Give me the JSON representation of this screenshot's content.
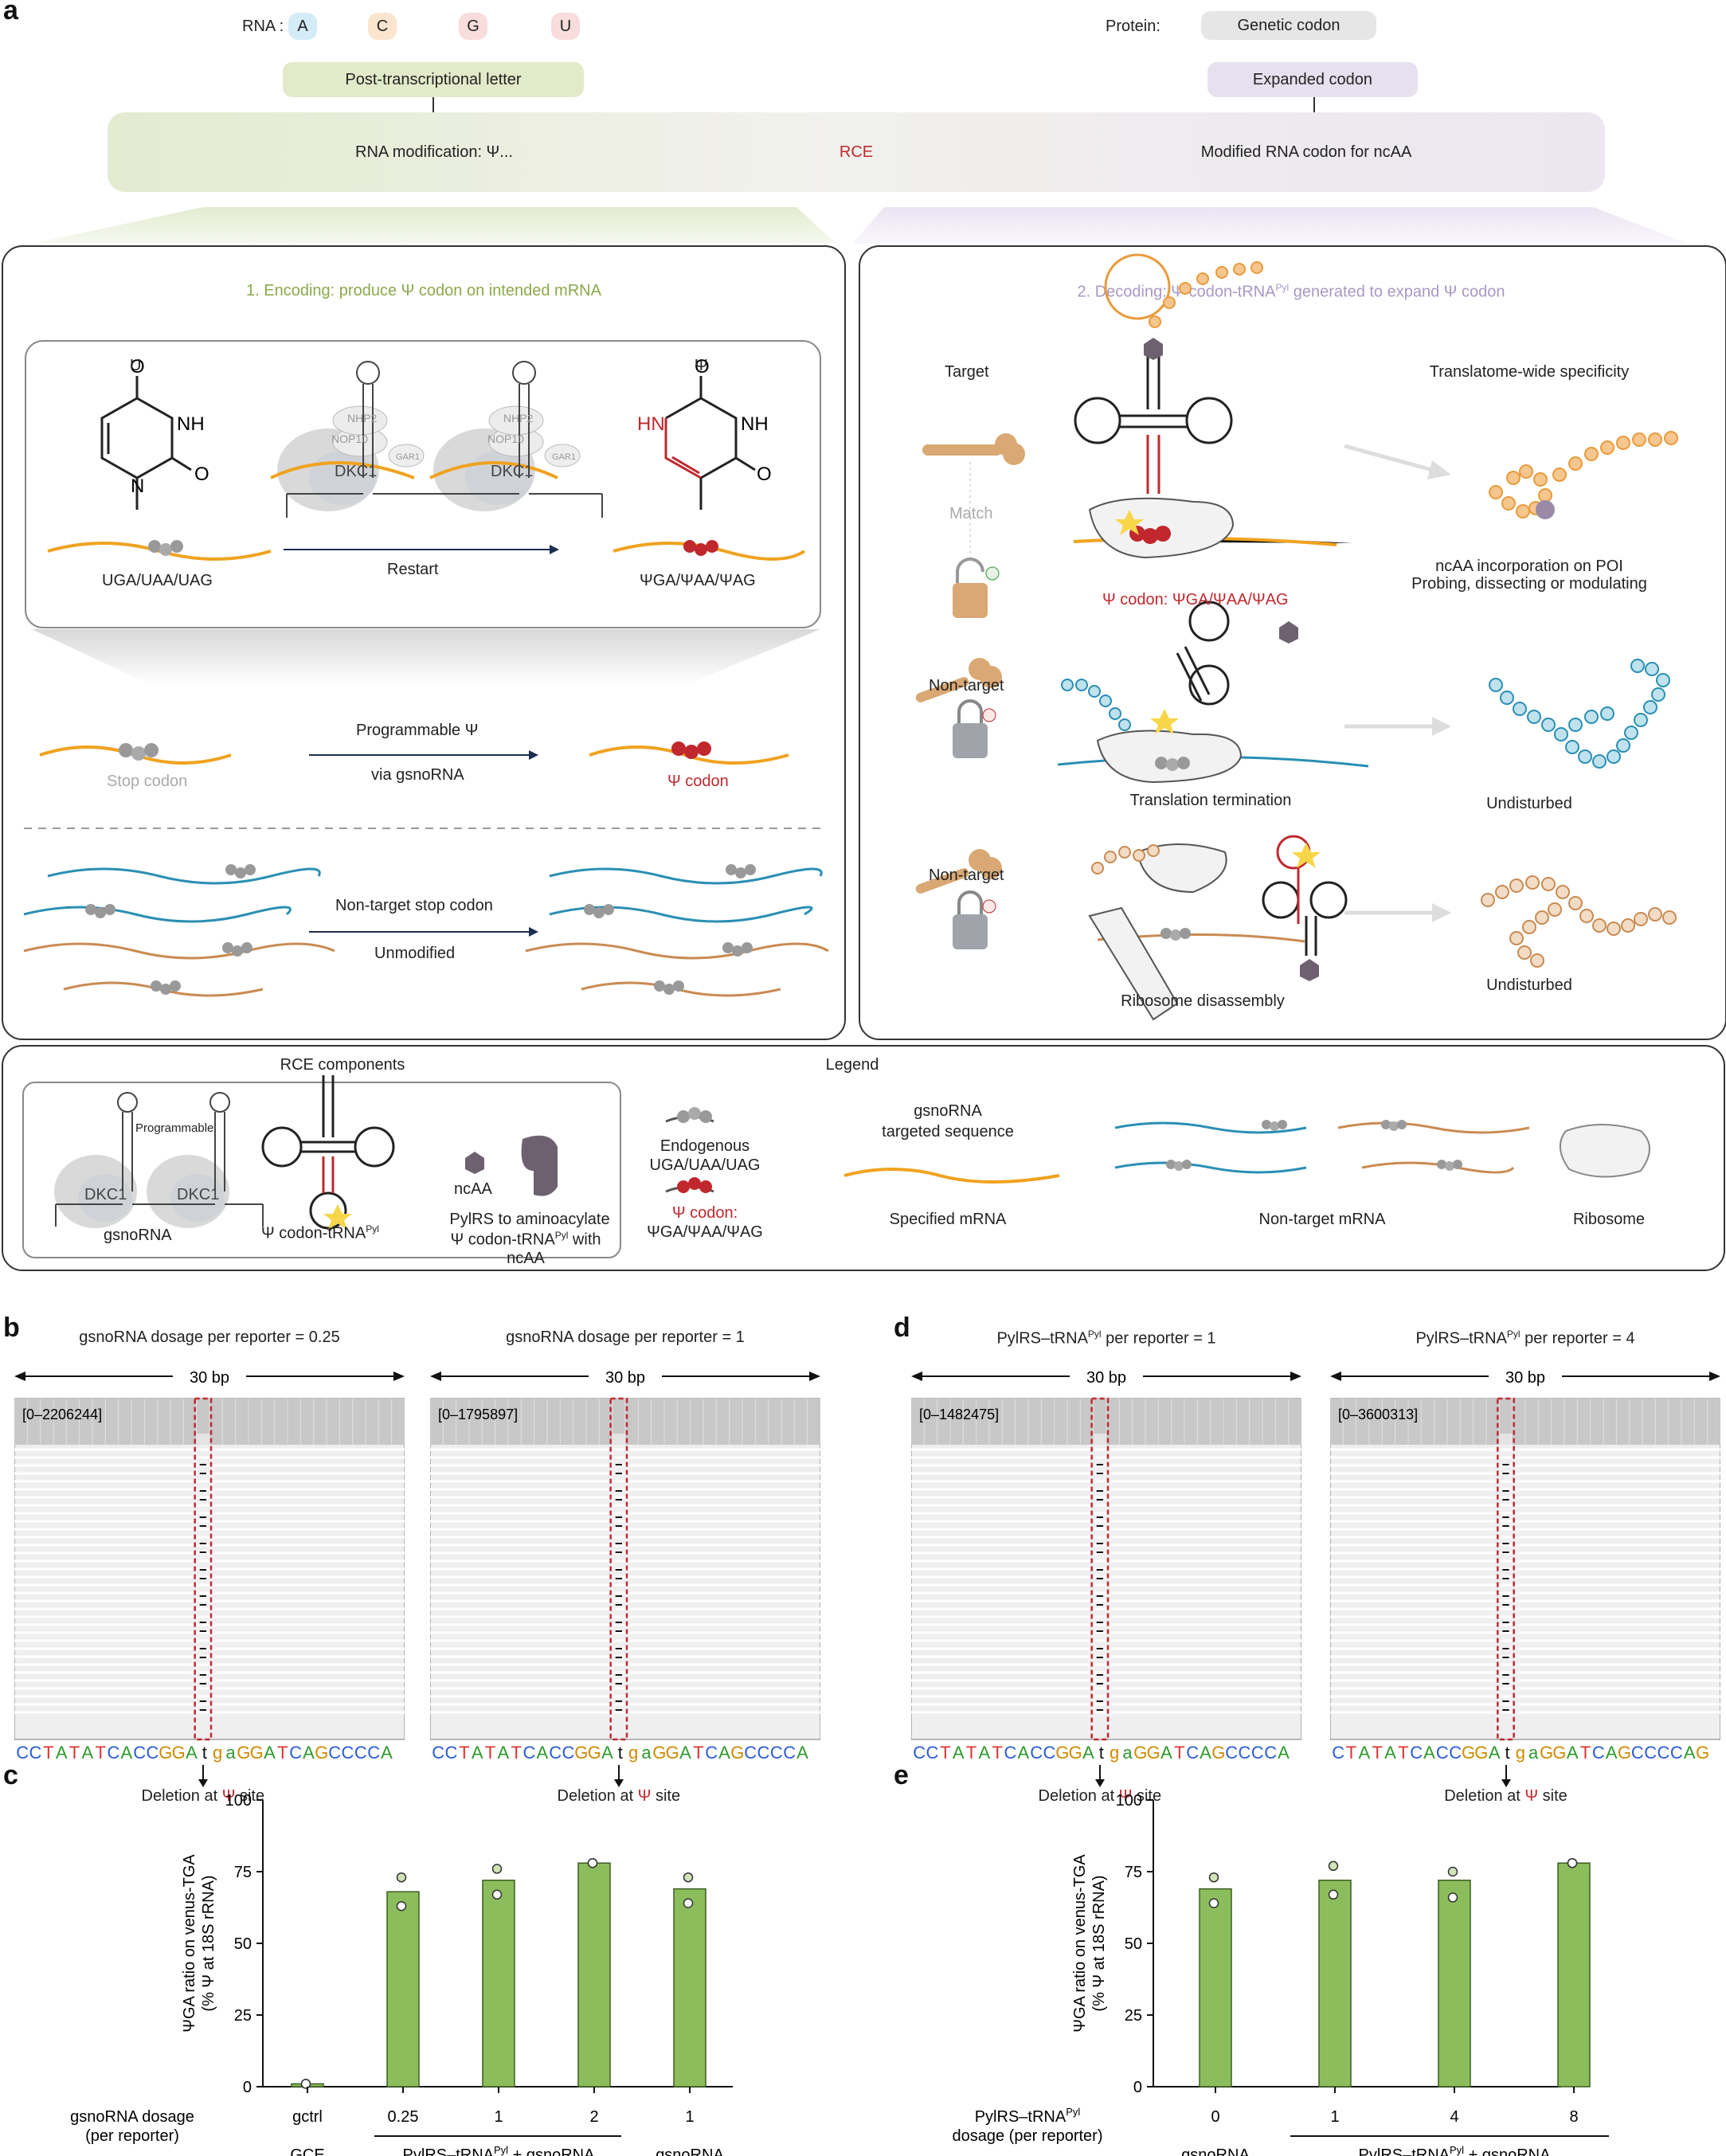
{
  "panels": {
    "a": "a",
    "b": "b",
    "c": "c",
    "d": "d",
    "e": "e"
  },
  "header": {
    "rna_label": "RNA :",
    "rna_letters": [
      {
        "letter": "A",
        "color": "#d3ecf7"
      },
      {
        "letter": "C",
        "color": "#fbe5cf"
      },
      {
        "letter": "G",
        "color": "#f9dcdc"
      },
      {
        "letter": "U",
        "color": "#f9dcdc"
      }
    ],
    "protein_label": "Protein:",
    "genetic_codon": "Genetic codon",
    "expanded_codon": "Expanded codon",
    "post_transcriptional": "Post-transcriptional letter",
    "rna_modification": "RNA modification: Ψ...",
    "rce": "RCE",
    "modified_codon": "Modified RNA codon for ncAA"
  },
  "encoding": {
    "title": "1. Encoding: produce Ψ codon on intended mRNA",
    "u_label": "U",
    "psi_label": "Ψ",
    "uga_label": "UGA/UAA/UAG",
    "psi_codons": "ΨGA/ΨAA/ΨAG",
    "restart": "Restart",
    "dkc1": "DKC1",
    "nhp2": "NHP2",
    "nop10": "NOP10",
    "gar1": "GAR1",
    "stop_codon": "Stop codon",
    "programmable": "Programmable Ψ",
    "via_gsnorna": "via gsnoRNA",
    "psi_codon": "Ψ codon",
    "nontarget_stop": "Non-target stop codon",
    "unmodified": "Unmodified"
  },
  "decoding": {
    "title": "2. Decoding: Ψ codon-tRNA",
    "title_sup": "Pyl",
    "title_tail": " generated to expand Ψ codon",
    "target": "Target",
    "match": "Match",
    "psi_codon_label": "Ψ codon: ΨGA/ΨAA/ΨAG",
    "specificity": "Translatome-wide specificity",
    "ncaa_incorp": "ncAA incorporation on POI",
    "probing": "Probing, dissecting or modulating",
    "nontarget1": "Non-target",
    "termination": "Translation termination",
    "undisturbed1": "Undisturbed",
    "nontarget2": "Non-target",
    "disassembly": "Ribosome disassembly",
    "undisturbed2": "Undisturbed"
  },
  "components": {
    "title": "RCE components",
    "programmable": "Programmable",
    "gsnorna": "gsnoRNA",
    "psi_trna": "Ψ codon-tRNA",
    "pyl": "Pyl",
    "ncaa": "ncAA",
    "pylrs1": "PylRS to aminoacylate",
    "pylrs2": "Ψ codon-tRNA",
    "pylrs2_tail": " with ncAA",
    "legend_title": "Legend",
    "endogenous": "Endogenous",
    "endogenous_codons": "UGA/UAA/UAG",
    "psi_codon": "Ψ codon:",
    "psi_codon_list": "ΨGA/ΨAA/ΨAG",
    "gsno_targeted1": "gsnoRNA",
    "gsno_targeted2": "targeted sequence",
    "specified_mrna": "Specified mRNA",
    "nontarget_mrna": "Non-target mRNA",
    "ribosome": "Ribosome"
  },
  "tracks": [
    {
      "title": "gsnoRNA dosage per reporter = 0.25",
      "bp": "30 bp",
      "range": "[0–2206244]",
      "seq": [
        [
          "C",
          "#2a5bd7"
        ],
        [
          "C",
          "#2a5bd7"
        ],
        [
          "T",
          "#d33"
        ],
        [
          "A",
          "#2e9a2e"
        ],
        [
          "T",
          "#d33"
        ],
        [
          "A",
          "#2e9a2e"
        ],
        [
          "T",
          "#d33"
        ],
        [
          "C",
          "#2a5bd7"
        ],
        [
          "A",
          "#2e9a2e"
        ],
        [
          "C",
          "#2a5bd7"
        ],
        [
          "C",
          "#2a5bd7"
        ],
        [
          "G",
          "#d08a00"
        ],
        [
          "G",
          "#d08a00"
        ],
        [
          "A",
          "#2e9a2e"
        ],
        [
          "t",
          "#111"
        ],
        [
          "g",
          "#d08a00"
        ],
        [
          "a",
          "#2e9a2e"
        ],
        [
          "G",
          "#d08a00"
        ],
        [
          "G",
          "#d08a00"
        ],
        [
          "A",
          "#2e9a2e"
        ],
        [
          "T",
          "#d33"
        ],
        [
          "C",
          "#2a5bd7"
        ],
        [
          "A",
          "#2e9a2e"
        ],
        [
          "G",
          "#d08a00"
        ],
        [
          "C",
          "#2a5bd7"
        ],
        [
          "C",
          "#2a5bd7"
        ],
        [
          "C",
          "#2a5bd7"
        ],
        [
          "C",
          "#2a5bd7"
        ],
        [
          "A",
          "#2e9a2e"
        ]
      ],
      "deletion": "Deletion at Ψ site"
    },
    {
      "title": "gsnoRNA dosage per reporter = 1",
      "bp": "30 bp",
      "range": "[0–1795897]",
      "seq": [
        [
          "C",
          "#2a5bd7"
        ],
        [
          "C",
          "#2a5bd7"
        ],
        [
          "T",
          "#d33"
        ],
        [
          "A",
          "#2e9a2e"
        ],
        [
          "T",
          "#d33"
        ],
        [
          "A",
          "#2e9a2e"
        ],
        [
          "T",
          "#d33"
        ],
        [
          "C",
          "#2a5bd7"
        ],
        [
          "A",
          "#2e9a2e"
        ],
        [
          "C",
          "#2a5bd7"
        ],
        [
          "C",
          "#2a5bd7"
        ],
        [
          "G",
          "#d08a00"
        ],
        [
          "G",
          "#d08a00"
        ],
        [
          "A",
          "#2e9a2e"
        ],
        [
          "t",
          "#111"
        ],
        [
          "g",
          "#d08a00"
        ],
        [
          "a",
          "#2e9a2e"
        ],
        [
          "G",
          "#d08a00"
        ],
        [
          "G",
          "#d08a00"
        ],
        [
          "A",
          "#2e9a2e"
        ],
        [
          "T",
          "#d33"
        ],
        [
          "C",
          "#2a5bd7"
        ],
        [
          "A",
          "#2e9a2e"
        ],
        [
          "G",
          "#d08a00"
        ],
        [
          "C",
          "#2a5bd7"
        ],
        [
          "C",
          "#2a5bd7"
        ],
        [
          "C",
          "#2a5bd7"
        ],
        [
          "C",
          "#2a5bd7"
        ],
        [
          "A",
          "#2e9a2e"
        ]
      ],
      "deletion": "Deletion at Ψ site"
    },
    {
      "title": "PylRS–tRNA",
      "title_sup": "Pyl",
      "title_tail": " per reporter = 1",
      "bp": "30 bp",
      "range": "[0–1482475]",
      "seq": [
        [
          "C",
          "#2a5bd7"
        ],
        [
          "C",
          "#2a5bd7"
        ],
        [
          "T",
          "#d33"
        ],
        [
          "A",
          "#2e9a2e"
        ],
        [
          "T",
          "#d33"
        ],
        [
          "A",
          "#2e9a2e"
        ],
        [
          "T",
          "#d33"
        ],
        [
          "C",
          "#2a5bd7"
        ],
        [
          "A",
          "#2e9a2e"
        ],
        [
          "C",
          "#2a5bd7"
        ],
        [
          "C",
          "#2a5bd7"
        ],
        [
          "G",
          "#d08a00"
        ],
        [
          "G",
          "#d08a00"
        ],
        [
          "A",
          "#2e9a2e"
        ],
        [
          "t",
          "#111"
        ],
        [
          "g",
          "#d08a00"
        ],
        [
          "a",
          "#2e9a2e"
        ],
        [
          "G",
          "#d08a00"
        ],
        [
          "G",
          "#d08a00"
        ],
        [
          "A",
          "#2e9a2e"
        ],
        [
          "T",
          "#d33"
        ],
        [
          "C",
          "#2a5bd7"
        ],
        [
          "A",
          "#2e9a2e"
        ],
        [
          "G",
          "#d08a00"
        ],
        [
          "C",
          "#2a5bd7"
        ],
        [
          "C",
          "#2a5bd7"
        ],
        [
          "C",
          "#2a5bd7"
        ],
        [
          "C",
          "#2a5bd7"
        ],
        [
          "A",
          "#2e9a2e"
        ]
      ],
      "deletion": "Deletion at Ψ site"
    },
    {
      "title": "PylRS–tRNA",
      "title_sup": "Pyl",
      "title_tail": " per reporter = 4",
      "bp": "30 bp",
      "range": "[0–3600313]",
      "seq": [
        [
          "C",
          "#2a5bd7"
        ],
        [
          "T",
          "#d33"
        ],
        [
          "A",
          "#2e9a2e"
        ],
        [
          "T",
          "#d33"
        ],
        [
          "A",
          "#2e9a2e"
        ],
        [
          "T",
          "#d33"
        ],
        [
          "C",
          "#2a5bd7"
        ],
        [
          "A",
          "#2e9a2e"
        ],
        [
          "C",
          "#2a5bd7"
        ],
        [
          "C",
          "#2a5bd7"
        ],
        [
          "G",
          "#d08a00"
        ],
        [
          "G",
          "#d08a00"
        ],
        [
          "A",
          "#2e9a2e"
        ],
        [
          "t",
          "#111"
        ],
        [
          "g",
          "#d08a00"
        ],
        [
          "a",
          "#2e9a2e"
        ],
        [
          "G",
          "#d08a00"
        ],
        [
          "G",
          "#d08a00"
        ],
        [
          "A",
          "#2e9a2e"
        ],
        [
          "T",
          "#d33"
        ],
        [
          "C",
          "#2a5bd7"
        ],
        [
          "A",
          "#2e9a2e"
        ],
        [
          "G",
          "#d08a00"
        ],
        [
          "C",
          "#2a5bd7"
        ],
        [
          "C",
          "#2a5bd7"
        ],
        [
          "C",
          "#2a5bd7"
        ],
        [
          "C",
          "#2a5bd7"
        ],
        [
          "A",
          "#2e9a2e"
        ],
        [
          "G",
          "#d08a00"
        ]
      ],
      "deletion": "Deletion at Ψ site"
    }
  ],
  "chart_data": [
    {
      "type": "bar",
      "panel": "c",
      "ylabel": "ΨGA ratio on venus-TGA",
      "ylabel2": "(% Ψ at 18S rRNA)",
      "ylim": [
        0,
        100
      ],
      "yticks": [
        0,
        25,
        50,
        75,
        100
      ],
      "categories": [
        "gctrl",
        "0.25",
        "1",
        "2",
        "1"
      ],
      "values": [
        1,
        68,
        72,
        78,
        69
      ],
      "points": [
        [
          1,
          1
        ],
        [
          73,
          63
        ],
        [
          76,
          67
        ],
        [
          78,
          78
        ],
        [
          73,
          64
        ]
      ],
      "row_label": "gsnoRNA dosage",
      "row_label2": "(per reporter)",
      "groups": [
        {
          "label": "GCE"
        },
        {
          "label": "PylRS–tRNA",
          "sup": "Pyl",
          "tail": " + gsnoRNA"
        },
        {
          "label": "gsnoRNA"
        }
      ]
    },
    {
      "type": "bar",
      "panel": "e",
      "ylabel": "ΨGA ratio on venus-TGA",
      "ylabel2": "(% Ψ at 18S rRNA)",
      "ylim": [
        0,
        100
      ],
      "yticks": [
        0,
        25,
        50,
        75,
        100
      ],
      "categories": [
        "0",
        "1",
        "4",
        "8"
      ],
      "values": [
        69,
        72,
        72,
        78
      ],
      "points": [
        [
          73,
          64
        ],
        [
          77,
          67
        ],
        [
          75,
          66
        ],
        [
          78,
          78
        ]
      ],
      "row_label": "PylRS–tRNA",
      "row_label_sup": "Pyl",
      "row_label2": "dosage (per reporter)",
      "groups": [
        {
          "label": "gsnoRNA"
        },
        {
          "label": "PylRS–tRNA",
          "sup": "Pyl",
          "tail": " + gsnoRNA"
        }
      ]
    }
  ],
  "colors": {
    "bar": "#8cbd5c",
    "bar_stroke": "#3d5d22",
    "orange": "#f0a21f",
    "blue": "#2a8fb3",
    "tan": "#c98b52",
    "red": "#c0282d",
    "green_band": "#e4ecd2",
    "purple_band": "#ece6f3"
  }
}
